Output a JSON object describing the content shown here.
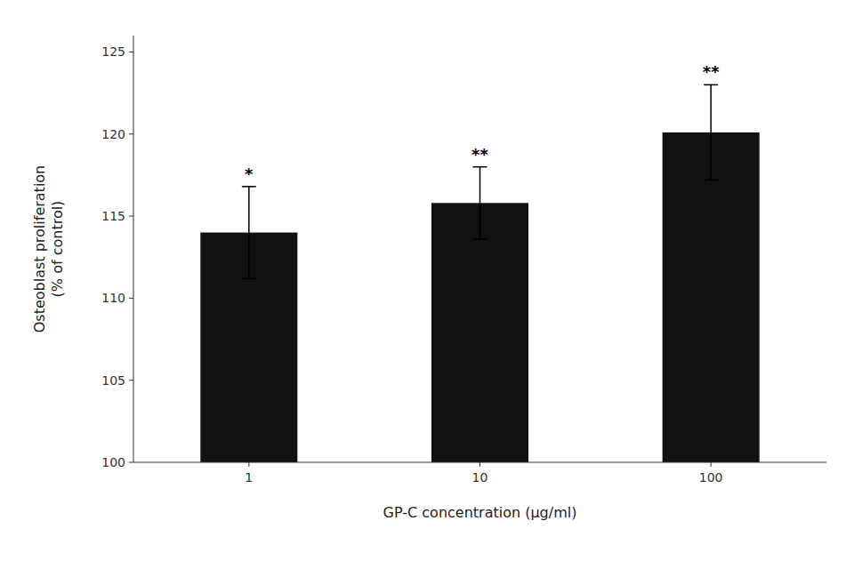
{
  "chart_data": {
    "type": "bar",
    "categories": [
      "1",
      "10",
      "100"
    ],
    "values": [
      114.0,
      115.8,
      120.1
    ],
    "errors": [
      2.8,
      2.2,
      2.9
    ],
    "annotations": [
      "*",
      "**",
      "**"
    ],
    "color": "#111111",
    "xlabel": "GP-C concentration (μg/ml)",
    "ylabel": "Osteoblast proliferation\n(% of control)",
    "ylim": [
      100,
      126
    ],
    "yticks": [
      100,
      105,
      110,
      115,
      120,
      125
    ],
    "grid": false
  }
}
